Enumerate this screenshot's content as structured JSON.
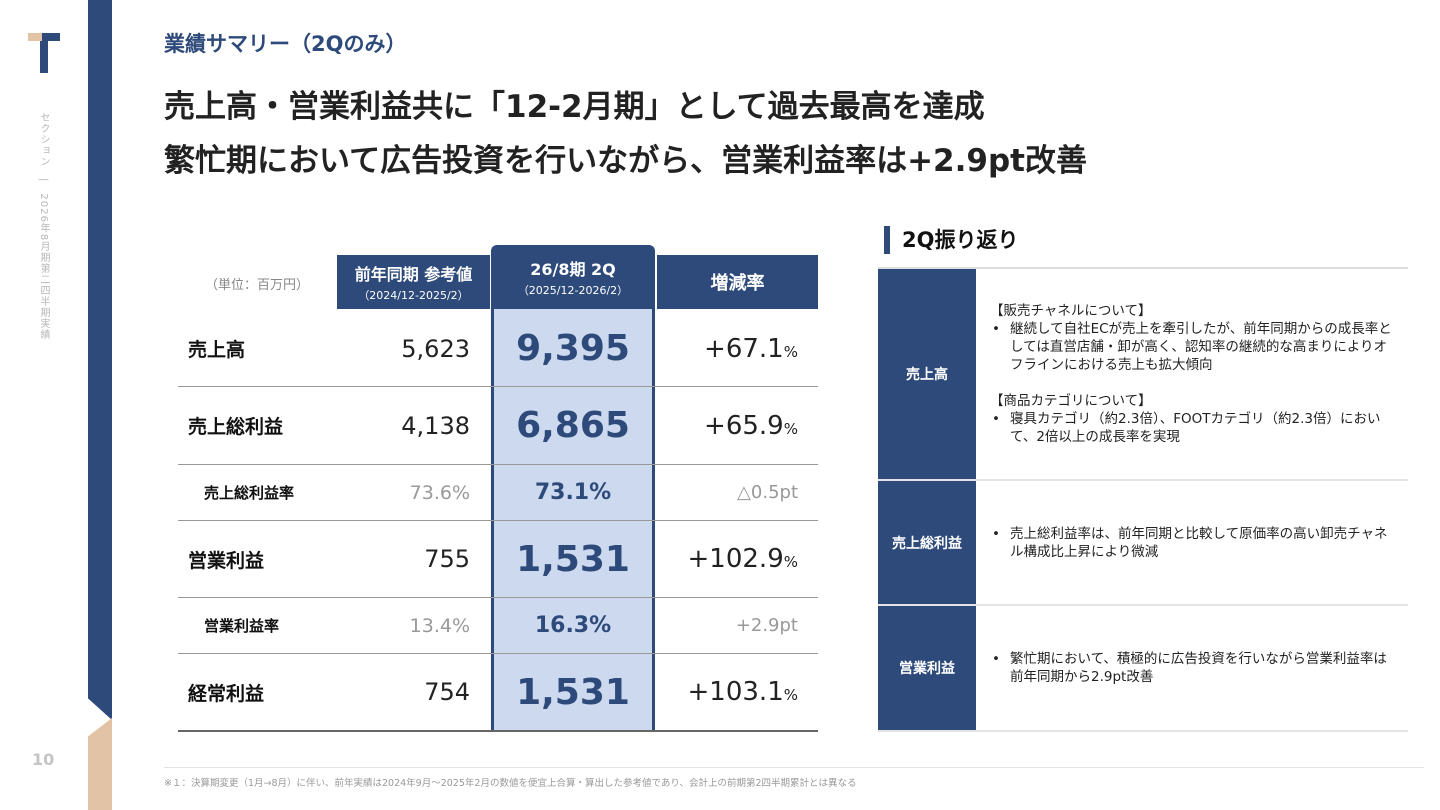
{
  "rail": {
    "text": "セクション　|　2026年8月期第二四半期実績",
    "page_number": "10"
  },
  "section_title": "業績サマリー（2Qのみ）",
  "headline": {
    "line1": "売上高・営業利益共に「12-2月期」として過去最高を達成",
    "line2": "繁忙期において広告投資を行いながら、営業利益率は+2.9pt改善"
  },
  "table": {
    "unit": "（単位：百万円）",
    "headers": {
      "prev_title": "前年同期 参考値",
      "prev_sub": "（2024/12-2025/2）",
      "cur_title": "26/8期 2Q",
      "cur_sub": "（2025/12-2026/2）",
      "rate_title": "増減率"
    },
    "rows": [
      {
        "label": "売上高",
        "prev": "5,623",
        "cur": "9,395",
        "rate": "+67.1",
        "unit": "%"
      },
      {
        "label": "売上総利益",
        "prev": "4,138",
        "cur": "6,865",
        "rate": "+65.9",
        "unit": "%"
      },
      {
        "label": "売上総利益率",
        "prev": "73.6%",
        "cur": "73.1%",
        "rate": "△0.5pt"
      },
      {
        "label": "営業利益",
        "prev": "755",
        "cur": "1,531",
        "rate": "+102.9",
        "unit": "%"
      },
      {
        "label": "営業利益率",
        "prev": "13.4%",
        "cur": "16.3%",
        "rate": "+2.9pt"
      },
      {
        "label": "経常利益",
        "prev": "754",
        "cur": "1,531",
        "rate": "+103.1",
        "unit": "%"
      }
    ]
  },
  "review": {
    "title": "2Q振り返り",
    "items": [
      {
        "key": "売上高",
        "h1": "【販売チャネルについて】",
        "b1": "継続して自社ECが売上を牽引したが、前年同期からの成長率としては直営店舗・卸が高く、認知率の継続的な高まりによりオフラインにおける売上も拡大傾向",
        "h2": "【商品カテゴリについて】",
        "b2": "寝具カテゴリ（約2.3倍）、FOOTカテゴリ（約2.3倍）において、2倍以上の成長率を実現"
      },
      {
        "key": "売上総利益",
        "b1": "売上総利益率は、前年同期と比較して原価率の高い卸売チャネル構成比上昇により微減"
      },
      {
        "key": "営業利益",
        "b1": "繁忙期において、積極的に広告投資を行いながら営業利益率は前年同期から2.9pt改善"
      }
    ]
  },
  "footnote": "※１：決算期変更（1月→8月）に伴い、前年実績は2024年9月〜2025年2月の数値を便宜上合算・算出した参考値であり、会計上の前期第2四半期累計とは異なる"
}
